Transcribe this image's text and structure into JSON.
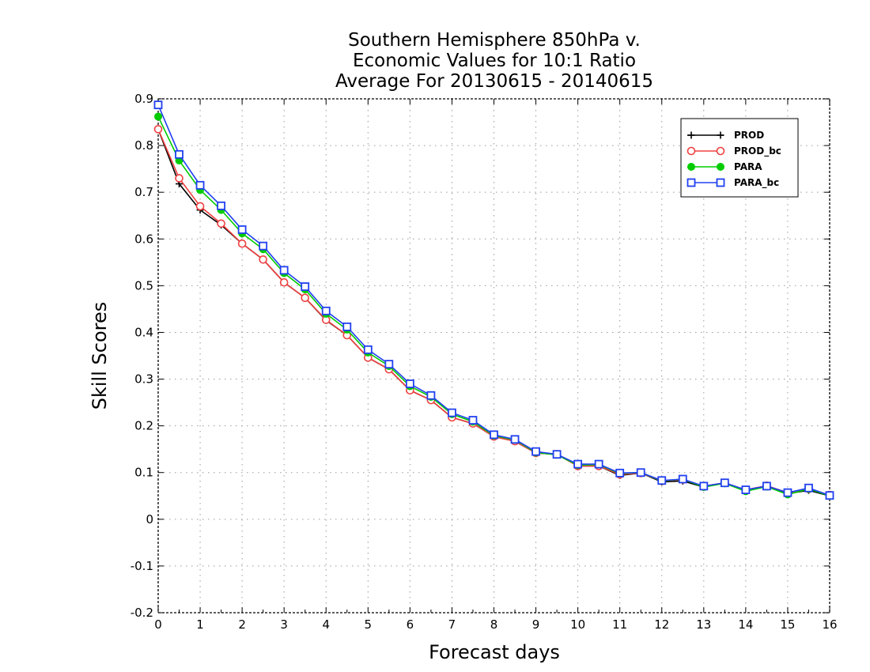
{
  "chart_data": {
    "type": "line",
    "title": [
      "Southern Hemisphere 850hPa v.",
      "Economic Values for 10:1 Ratio",
      "Average For 20130615 - 20140615"
    ],
    "xlabel": "Forecast days",
    "ylabel": "Skill Scores",
    "xlim": [
      0,
      16
    ],
    "ylim": [
      -0.2,
      0.9
    ],
    "xticks": [
      "0",
      "1",
      "2",
      "3",
      "4",
      "5",
      "6",
      "7",
      "8",
      "9",
      "10",
      "11",
      "12",
      "13",
      "14",
      "15",
      "16"
    ],
    "yticks": [
      "-0.2",
      "-0.1",
      "0",
      "0.1",
      "0.2",
      "0.3",
      "0.4",
      "0.5",
      "0.6",
      "0.7",
      "0.8",
      "0.9"
    ],
    "grid": true,
    "legend_position": "top-right",
    "x": [
      0,
      0.5,
      1,
      1.5,
      2,
      2.5,
      3,
      3.5,
      4,
      4.5,
      5,
      5.5,
      6,
      6.5,
      7,
      7.5,
      8,
      8.5,
      9,
      9.5,
      10,
      10.5,
      11,
      11.5,
      12,
      12.5,
      13,
      13.5,
      14,
      14.5,
      15,
      15.5,
      16
    ],
    "series": [
      {
        "name": "PROD",
        "color": "#000000",
        "marker": "plus",
        "values": [
          0.835,
          0.718,
          0.662,
          0.63,
          0.59,
          0.556,
          0.507,
          0.474,
          0.426,
          0.394,
          0.346,
          0.321,
          0.276,
          0.255,
          0.218,
          0.205,
          0.177,
          0.167,
          0.142,
          0.139,
          0.114,
          0.114,
          0.094,
          0.099,
          0.08,
          0.082,
          0.069,
          0.078,
          0.061,
          0.071,
          0.055,
          0.062,
          0.05
        ]
      },
      {
        "name": "PROD_bc",
        "color": "#f04040",
        "marker": "open-circle",
        "values": [
          0.835,
          0.73,
          0.67,
          0.633,
          0.59,
          0.556,
          0.507,
          0.474,
          0.427,
          0.394,
          0.346,
          0.321,
          0.276,
          0.255,
          0.218,
          0.205,
          0.177,
          0.167,
          0.142,
          0.139,
          0.114,
          0.114,
          0.096,
          0.099,
          0.082,
          0.085,
          0.071,
          0.078,
          0.063,
          0.072,
          0.057,
          0.065,
          0.052
        ]
      },
      {
        "name": "PARA",
        "color": "#00cc00",
        "marker": "filled-circle",
        "values": [
          0.862,
          0.768,
          0.705,
          0.662,
          0.612,
          0.578,
          0.527,
          0.492,
          0.44,
          0.406,
          0.357,
          0.328,
          0.285,
          0.262,
          0.225,
          0.209,
          0.179,
          0.17,
          0.143,
          0.138,
          0.116,
          0.117,
          0.098,
          0.1,
          0.082,
          0.086,
          0.069,
          0.077,
          0.06,
          0.07,
          0.053,
          0.065,
          0.05
        ]
      },
      {
        "name": "PARA_bc",
        "color": "#2040f0",
        "marker": "open-square",
        "values": [
          0.887,
          0.781,
          0.715,
          0.671,
          0.62,
          0.585,
          0.533,
          0.498,
          0.446,
          0.412,
          0.363,
          0.332,
          0.29,
          0.265,
          0.228,
          0.212,
          0.181,
          0.171,
          0.145,
          0.139,
          0.118,
          0.118,
          0.099,
          0.1,
          0.083,
          0.086,
          0.071,
          0.078,
          0.063,
          0.071,
          0.057,
          0.067,
          0.051
        ]
      }
    ]
  }
}
